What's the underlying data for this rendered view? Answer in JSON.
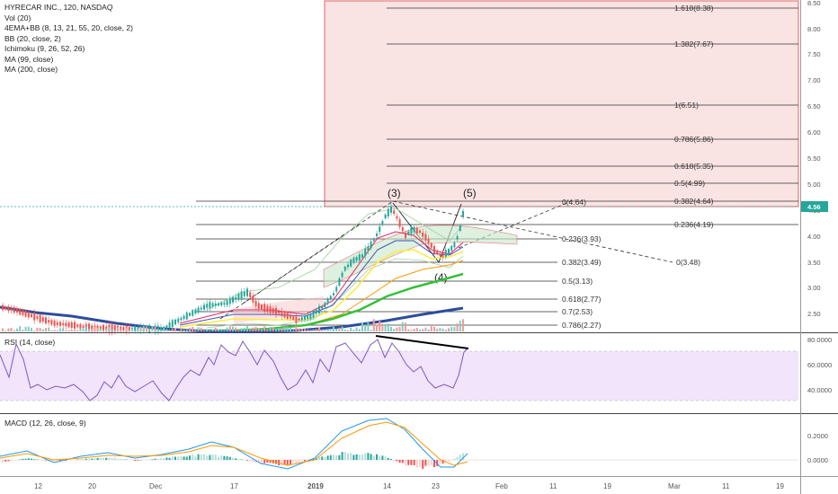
{
  "legend": {
    "symbol": "HYRECAR INC., 120, NASDAQ",
    "indicators": [
      "Vol (20)",
      "4EMA+BB (8, 13, 21, 55, 20, close, 2)",
      "BB (20, close, 2)",
      "Ichimoku (9, 26, 52, 26)",
      "MA (99, close)",
      "MA (200, close)"
    ]
  },
  "price_axis": [
    "8.50",
    "8.00",
    "7.50",
    "7.00",
    "6.50",
    "6.00",
    "5.50",
    "5.00",
    "4.50",
    "4.00",
    "3.50",
    "3.00",
    "2.50"
  ],
  "last_price": "4.56",
  "fib_upper": [
    "1.618(8.38)",
    "1.382(7.67)",
    "1(6.51)",
    "0.786(5.86)",
    "0.618(5.35)",
    "0.5(4.99)",
    "0.382(4.64)",
    "0.236(4.19)"
  ],
  "fib_lower": [
    "0(4.64)",
    "0.236(3.93)",
    "0.382(3.49)",
    "0.5(3.13)",
    "0.618(2.77)",
    "0.7(2.53)",
    "0.786(2.27)"
  ],
  "target_label": "0(3.48)",
  "waves": [
    "(3)",
    "(4)",
    "(5)"
  ],
  "rsi": {
    "label": "RSI (14, close)",
    "axis": [
      "80.0000",
      "60.0000",
      "40.0000"
    ]
  },
  "macd": {
    "label": "MACD (12, 26, close, 9)",
    "axis": [
      "0.2000",
      "0.0000"
    ]
  },
  "x_axis": [
    "12",
    "20",
    "Dec",
    "17",
    "2019",
    "14",
    "23",
    "Feb",
    "11",
    "19",
    "Mar",
    "11",
    "19"
  ],
  "colors": {
    "fib_box": "#f8d7d7",
    "fib_box_border": "#e06666",
    "rsi_band": "#f1e4fb",
    "price_line": "#26a69a",
    "ma200": "#2c4d9c",
    "ma99": "#34c03a"
  }
}
